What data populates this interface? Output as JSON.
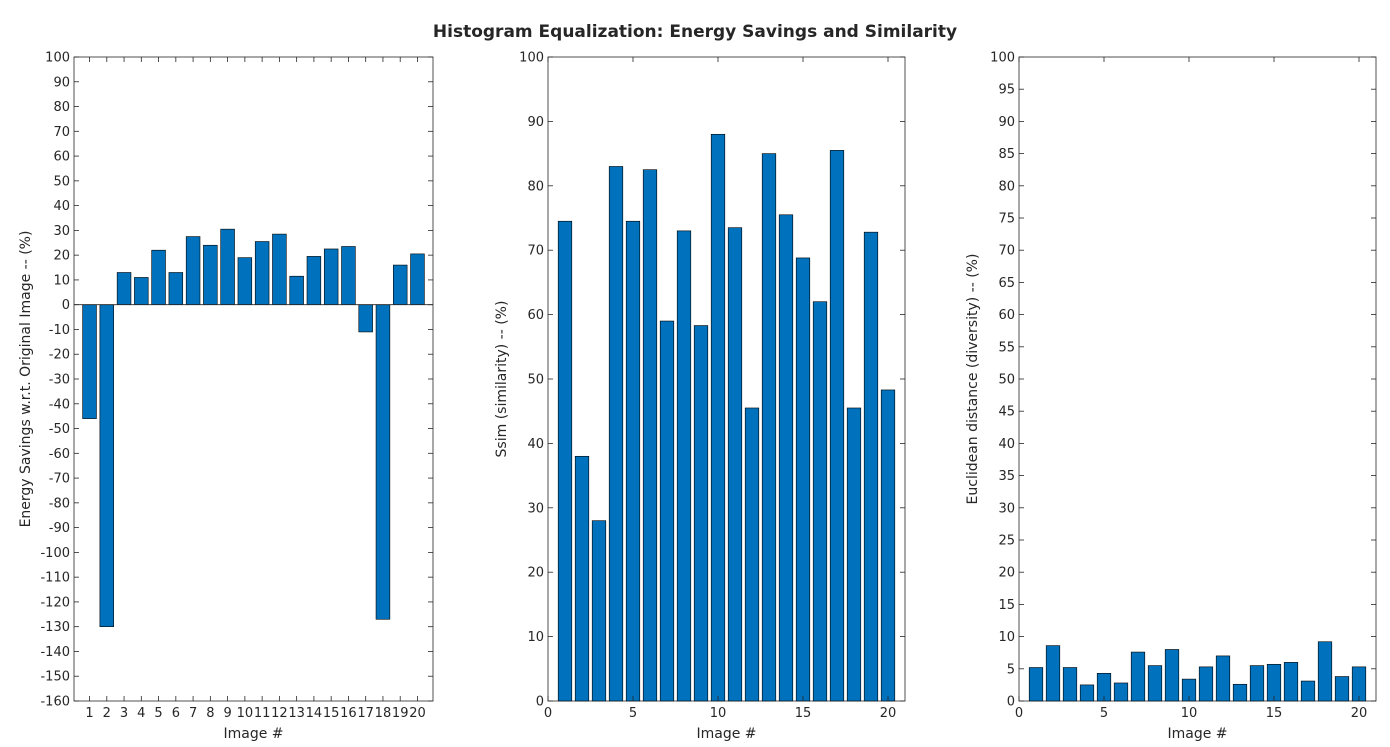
{
  "figure": {
    "title": "Histogram Equalization: Energy Savings and Similarity"
  },
  "chart_data": [
    {
      "type": "bar",
      "xlabel": "Image #",
      "ylabel": "Energy Savings w.r.t. Original Image -- (%)",
      "categories": [
        "1",
        "2",
        "3",
        "4",
        "5",
        "6",
        "7",
        "8",
        "9",
        "10",
        "11",
        "12",
        "13",
        "14",
        "15",
        "16",
        "17",
        "18",
        "19",
        "20"
      ],
      "values": [
        -46,
        -130,
        13,
        11,
        22,
        13,
        27.5,
        24,
        30.5,
        19,
        25.5,
        28.5,
        11.5,
        19.5,
        22.5,
        23.5,
        -11,
        -127,
        16,
        20.5
      ],
      "ylim": [
        -160,
        100
      ],
      "yticks": [
        -160,
        -150,
        -140,
        -130,
        -120,
        -110,
        -100,
        -90,
        -80,
        -70,
        -60,
        -50,
        -40,
        -30,
        -20,
        -10,
        0,
        10,
        20,
        30,
        40,
        50,
        60,
        70,
        80,
        90,
        100
      ],
      "grid": false,
      "bar_color": "#0072bd"
    },
    {
      "type": "bar",
      "xlabel": "Image #",
      "ylabel": "Ssim (similarity) -- (%)",
      "x": [
        1,
        2,
        3,
        4,
        5,
        6,
        7,
        8,
        9,
        10,
        11,
        12,
        13,
        14,
        15,
        16,
        17,
        18,
        19,
        20
      ],
      "values": [
        74.5,
        38,
        28,
        83,
        74.5,
        82.5,
        59,
        73,
        58.3,
        88,
        73.5,
        45.5,
        85,
        75.5,
        68.8,
        62,
        85.5,
        45.5,
        72.8,
        48.3
      ],
      "xlim": [
        0,
        21
      ],
      "xticks": [
        0,
        5,
        10,
        15,
        20
      ],
      "ylim": [
        0,
        100
      ],
      "yticks": [
        0,
        10,
        20,
        30,
        40,
        50,
        60,
        70,
        80,
        90,
        100
      ],
      "grid": false,
      "bar_color": "#0072bd"
    },
    {
      "type": "bar",
      "xlabel": "Image #",
      "ylabel": "Euclidean distance (diversity) -- (%)",
      "x": [
        1,
        2,
        3,
        4,
        5,
        6,
        7,
        8,
        9,
        10,
        11,
        12,
        13,
        14,
        15,
        16,
        17,
        18,
        19,
        20
      ],
      "values": [
        5.2,
        8.6,
        5.2,
        2.5,
        4.3,
        2.8,
        7.6,
        5.5,
        8,
        3.4,
        5.3,
        7,
        2.6,
        5.5,
        5.7,
        6,
        3.1,
        9.2,
        3.8,
        5.3
      ],
      "xlim": [
        0,
        21
      ],
      "xticks": [
        0,
        5,
        10,
        15,
        20
      ],
      "ylim": [
        0,
        100
      ],
      "yticks": [
        0,
        5,
        10,
        15,
        20,
        25,
        30,
        35,
        40,
        45,
        50,
        55,
        60,
        65,
        70,
        75,
        80,
        85,
        90,
        95,
        100
      ],
      "grid": false,
      "bar_color": "#0072bd"
    }
  ]
}
